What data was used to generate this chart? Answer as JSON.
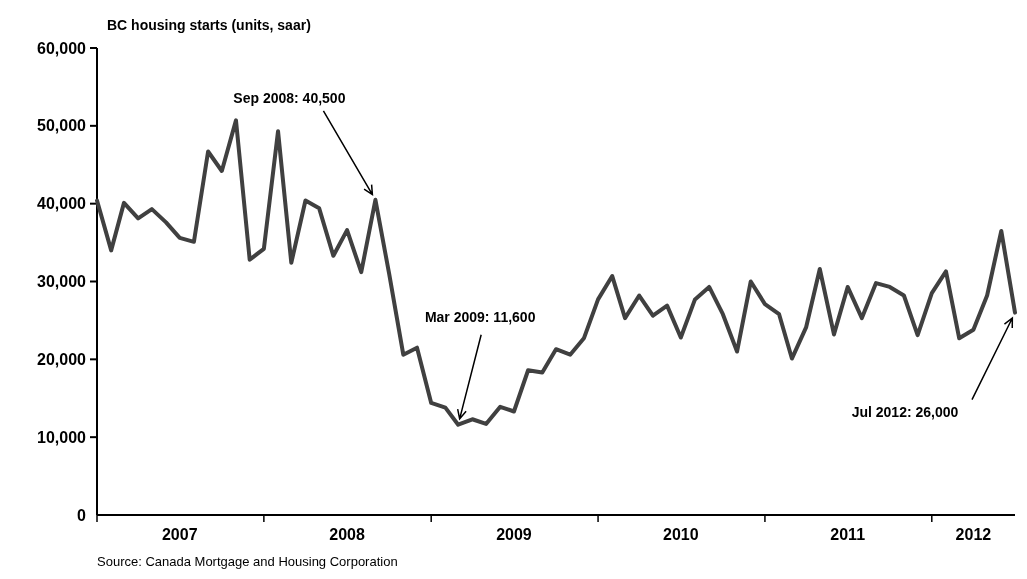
{
  "chart_data": {
    "type": "line",
    "title": "BC housing starts (units, saar)",
    "x": [
      "2007-01",
      "2007-02",
      "2007-03",
      "2007-04",
      "2007-05",
      "2007-06",
      "2007-07",
      "2007-08",
      "2007-09",
      "2007-10",
      "2007-11",
      "2007-12",
      "2008-01",
      "2008-02",
      "2008-03",
      "2008-04",
      "2008-05",
      "2008-06",
      "2008-07",
      "2008-08",
      "2008-09",
      "2008-10",
      "2008-11",
      "2008-12",
      "2009-01",
      "2009-02",
      "2009-03",
      "2009-04",
      "2009-05",
      "2009-06",
      "2009-07",
      "2009-08",
      "2009-09",
      "2009-10",
      "2009-11",
      "2009-12",
      "2010-01",
      "2010-02",
      "2010-03",
      "2010-04",
      "2010-05",
      "2010-06",
      "2010-07",
      "2010-08",
      "2010-09",
      "2010-10",
      "2010-11",
      "2010-12",
      "2011-01",
      "2011-02",
      "2011-03",
      "2011-04",
      "2011-05",
      "2011-06",
      "2011-07",
      "2011-08",
      "2011-09",
      "2011-10",
      "2011-11",
      "2011-12",
      "2012-01",
      "2012-02",
      "2012-03",
      "2012-04",
      "2012-05",
      "2012-06",
      "2012-07"
    ],
    "series": [
      {
        "color": "#404040",
        "values": [
          40400,
          34000,
          40100,
          38100,
          39300,
          37600,
          35600,
          35100,
          46700,
          44200,
          50700,
          32800,
          34200,
          49300,
          32400,
          40400,
          39400,
          33300,
          36600,
          31200,
          40500,
          31000,
          20600,
          21500,
          14400,
          13800,
          11600,
          12300,
          11700,
          13900,
          13300,
          18600,
          18300,
          21300,
          20600,
          22700,
          27700,
          30700,
          25300,
          28200,
          25600,
          26900,
          22800,
          27700,
          29300,
          25800,
          21000,
          30000,
          27100,
          25800,
          20100,
          24100,
          31600,
          23200,
          29300,
          25300,
          29800,
          29300,
          28200,
          23100,
          28500,
          31300,
          22700,
          23800,
          28200,
          36500,
          26000
        ]
      }
    ],
    "xlim": [
      "2007-01-01",
      "2012-07-01"
    ],
    "xticks": [
      {
        "value": "2007-01-01",
        "label": null
      },
      {
        "value": "2007-07-01",
        "label": "2007"
      },
      {
        "value": "2008-01-01",
        "label": null
      },
      {
        "value": "2008-07-01",
        "label": "2008"
      },
      {
        "value": "2009-01-01",
        "label": null
      },
      {
        "value": "2009-07-01",
        "label": "2009"
      },
      {
        "value": "2010-01-01",
        "label": null
      },
      {
        "value": "2010-07-01",
        "label": "2010"
      },
      {
        "value": "2011-01-01",
        "label": null
      },
      {
        "value": "2011-07-01",
        "label": "2011"
      },
      {
        "value": "2012-01-01",
        "label": null
      },
      {
        "value": "2012-04-01",
        "label": "2012"
      }
    ],
    "ylim": [
      0,
      60000
    ],
    "yticks": [
      {
        "value": 0,
        "label": "0"
      },
      {
        "value": 10000,
        "label": "10,000"
      },
      {
        "value": 20000,
        "label": "20,000"
      },
      {
        "value": 30000,
        "label": "30,000"
      },
      {
        "value": 40000,
        "label": "40,000"
      },
      {
        "value": 50000,
        "label": "50,000"
      },
      {
        "value": 60000,
        "label": "60,000"
      }
    ],
    "annotations": [
      {
        "text": "Sep 2008: 40,500",
        "x": "2008-09",
        "y": 40500
      },
      {
        "text": "Mar 2009: 11,600",
        "x": "2009-03",
        "y": 11600
      },
      {
        "text": "Jul 2012: 26,000",
        "x": "2012-07",
        "y": 26000
      },
      "Source: Canada Mortgage and Housing Corporation"
    ],
    "grid": false,
    "marker": "none",
    "line_style": "solid"
  }
}
